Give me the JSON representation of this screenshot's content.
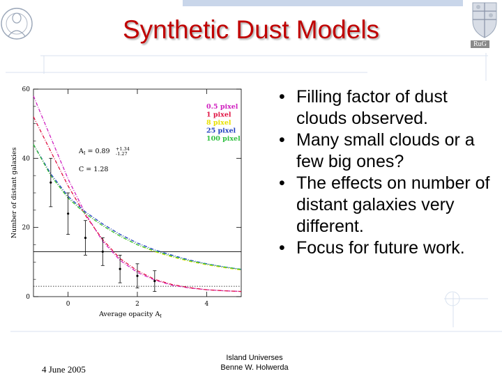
{
  "slide": {
    "title": "Synthetic Dust Models",
    "bullets": [
      "Filling factor of dust clouds observed.",
      "Many small clouds or a few big ones?",
      "The effects on number of distant galaxies very different.",
      "Focus for future work."
    ],
    "footer": {
      "date": "4 June 2005",
      "center_line1": "Island Universes",
      "center_line2": "Benne W. Holwerda"
    },
    "logo_text": "RuG"
  },
  "colors": {
    "title": "#c00000",
    "deco_lines": "#d8e2ef",
    "top_bar": "#c9d6ea"
  },
  "chart_data": {
    "type": "line",
    "xlabel": "Average opacity A",
    "xlabel_subscript": "I",
    "ylabel": "Number of distant galaxies",
    "xlim": [
      -1,
      5
    ],
    "ylim": [
      0,
      60
    ],
    "xticks": [
      0,
      2,
      4
    ],
    "yticks": [
      0,
      20,
      40,
      60
    ],
    "annotation_ai_prefix": "A",
    "annotation_ai_subscript": "I",
    "annotation_ai_value": " = 0.89",
    "annotation_ai_errors": [
      "+1.34",
      "-1.27"
    ],
    "annotation_c": "C = 1.28",
    "legend_position": "top-right",
    "series": [
      {
        "name": "0.5 pixel",
        "color": "#d020c0",
        "x": [
          -1,
          -0.5,
          0,
          0.5,
          1,
          1.5,
          2,
          2.5,
          3,
          3.5,
          4,
          4.5,
          5
        ],
        "y": [
          58,
          46,
          34,
          24,
          16,
          10.5,
          7,
          4.8,
          3.3,
          2.5,
          2,
          1.7,
          1.5
        ]
      },
      {
        "name": "1 pixel",
        "color": "#e01040",
        "x": [
          -1,
          -0.5,
          0,
          0.5,
          1,
          1.5,
          2,
          2.5,
          3,
          3.5,
          4,
          4.5,
          5
        ],
        "y": [
          52,
          42,
          32,
          23.5,
          16.5,
          11,
          7.5,
          5,
          3.5,
          2.6,
          2,
          1.7,
          1.5
        ]
      },
      {
        "name": "8 pixel",
        "color": "#e8e000",
        "x": [
          -1,
          -0.5,
          0,
          0.5,
          1,
          1.5,
          2,
          2.5,
          3,
          3.5,
          4,
          4.5,
          5
        ],
        "y": [
          44,
          35,
          28.5,
          24,
          20.5,
          17.5,
          15,
          13,
          11.5,
          10.2,
          9.2,
          8.4,
          7.7
        ]
      },
      {
        "name": "25 pixel",
        "color": "#2040c0",
        "x": [
          -1,
          -0.5,
          0,
          0.5,
          1,
          1.5,
          2,
          2.5,
          3,
          3.5,
          4,
          4.5,
          5
        ],
        "y": [
          44,
          35.5,
          29,
          24.5,
          21,
          18,
          15.5,
          13.5,
          12,
          10.6,
          9.5,
          8.6,
          7.9
        ]
      },
      {
        "name": "100 pixel",
        "color": "#30c040",
        "x": [
          -1,
          -0.5,
          0,
          0.5,
          1,
          1.5,
          2,
          2.5,
          3,
          3.5,
          4,
          4.5,
          5
        ],
        "y": [
          44,
          35,
          28.5,
          24,
          20.5,
          17.5,
          15,
          13.2,
          11.7,
          10.4,
          9.4,
          8.6,
          7.9
        ]
      }
    ],
    "data_points": {
      "x": [
        -0.5,
        0,
        0.5,
        1,
        1.5,
        2,
        2.5
      ],
      "y": [
        33,
        24,
        17,
        13,
        8,
        6,
        4.5
      ],
      "err": [
        7,
        6,
        5,
        4,
        4,
        3.5,
        3
      ]
    },
    "horizontal_lines": [
      {
        "y": 13,
        "style": "solid"
      },
      {
        "y": 3,
        "style": "dotted"
      }
    ]
  }
}
